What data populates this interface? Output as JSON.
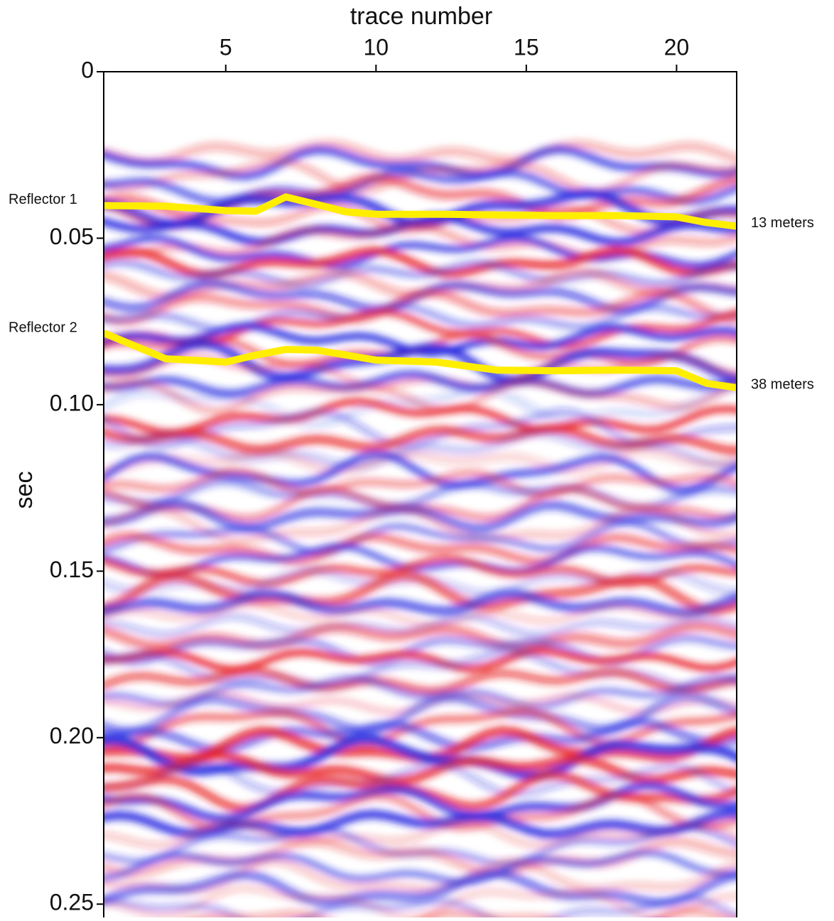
{
  "chart_data": {
    "type": "line",
    "x_label": "trace number",
    "y_label": "sec",
    "x": [
      1,
      3,
      5,
      6,
      7,
      8,
      9,
      10,
      12,
      14,
      16,
      18,
      20,
      21,
      22
    ],
    "series": [
      {
        "name": "Reflector 1",
        "color": "#ffee00",
        "annotation": "13 meters",
        "values": [
          0.0402,
          0.0404,
          0.0417,
          0.0419,
          0.0376,
          0.0398,
          0.0421,
          0.0428,
          0.0428,
          0.043,
          0.0432,
          0.0432,
          0.0436,
          0.0453,
          0.0464
        ]
      },
      {
        "name": "Reflector 2",
        "color": "#ffee00",
        "annotation": "38 meters",
        "values": [
          0.0787,
          0.0862,
          0.0872,
          0.0851,
          0.0834,
          0.0836,
          0.0851,
          0.0866,
          0.0872,
          0.0896,
          0.0898,
          0.0896,
          0.0898,
          0.0936,
          0.0949
        ]
      }
    ],
    "xlim": [
      0.94,
      22
    ],
    "ylim": [
      0,
      0.254
    ],
    "y_inverted": true,
    "x_axis_top": true,
    "xticks": [
      5,
      10,
      15,
      20
    ],
    "yticks": [
      0,
      0.05,
      {
        "value": 0.1,
        "label": "0.10"
      },
      0.15,
      {
        "value": 0.2,
        "label": "0.20"
      },
      0.25
    ]
  }
}
